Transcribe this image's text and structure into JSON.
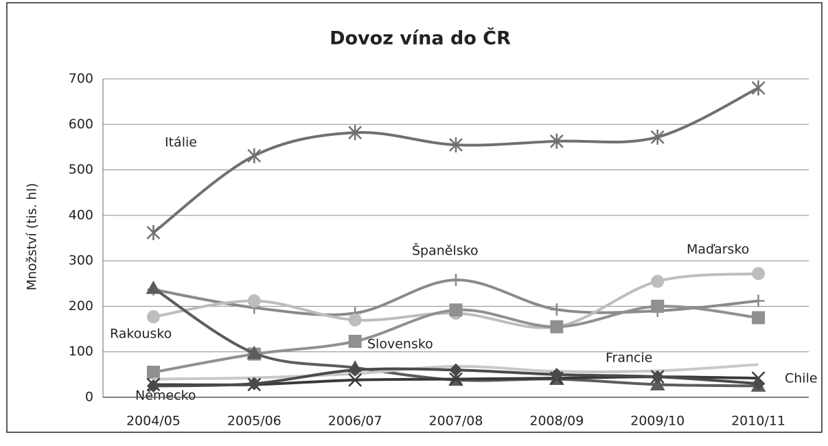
{
  "chart_data": {
    "type": "line",
    "title": "Dovoz vína do ČR",
    "y_label": "Množství (tis. hl)",
    "categories": [
      "2004/05",
      "2005/06",
      "2006/07",
      "2007/08",
      "2008/09",
      "2009/10",
      "2010/11"
    ],
    "ylim": [
      0,
      700
    ],
    "yticks": [
      0,
      100,
      200,
      300,
      400,
      500,
      600,
      700
    ],
    "grid": true,
    "smooth": true,
    "series": [
      {
        "name": "Itálie",
        "color": "#707070",
        "marker": "asterisk",
        "values": [
          362,
          531,
          582,
          555,
          563,
          572,
          680
        ]
      },
      {
        "name": "Španělsko",
        "color": "#8a8a8a",
        "marker": "plus",
        "values": [
          237,
          197,
          185,
          258,
          193,
          190,
          212
        ]
      },
      {
        "name": "Maďarsko",
        "color": "#bdbdbd",
        "marker": "circle",
        "values": [
          177,
          212,
          170,
          185,
          155,
          255,
          272
        ]
      },
      {
        "name": "Slovensko",
        "color": "#909090",
        "marker": "square",
        "values": [
          55,
          95,
          123,
          192,
          155,
          200,
          175
        ]
      },
      {
        "name": "Rakousko",
        "color": "#5c5c5c",
        "marker": "triangle",
        "values": [
          240,
          97,
          65,
          38,
          40,
          28,
          25
        ]
      },
      {
        "name": "Francie",
        "color": "#c8c8c8",
        "marker": "none",
        "values": [
          40,
          43,
          52,
          68,
          57,
          58,
          72
        ]
      },
      {
        "name": "Chile",
        "color": "#3a3a3a",
        "marker": "x",
        "values": [
          28,
          28,
          38,
          40,
          42,
          45,
          42
        ]
      },
      {
        "name": "Německo",
        "color": "#4a4a4a",
        "marker": "diamond",
        "values": [
          25,
          30,
          60,
          60,
          50,
          45,
          30
        ]
      }
    ]
  }
}
